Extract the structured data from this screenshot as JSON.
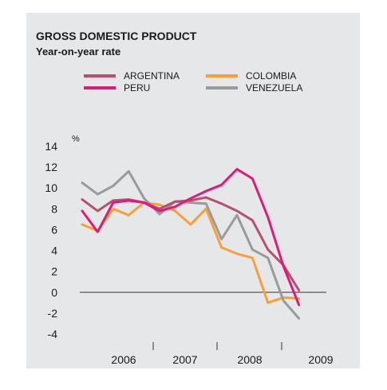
{
  "chart_data": {
    "type": "line",
    "title": "GROSS DOMESTIC PRODUCT",
    "subtitle": "Year-on-year rate",
    "ylabel": "%",
    "xlabel": "",
    "ylim": [
      -4,
      14
    ],
    "yticks": [
      14,
      12,
      10,
      8,
      6,
      4,
      2,
      0,
      -2,
      -4
    ],
    "x_tick_labels": [
      "2006",
      "2007",
      "2008",
      "2009"
    ],
    "grid": false,
    "legend_position": "top",
    "x": [
      "2005Q3",
      "2005Q4",
      "2006Q1",
      "2006Q2",
      "2006Q3",
      "2006Q4",
      "2007Q1",
      "2007Q2",
      "2007Q3",
      "2007Q4",
      "2008Q1",
      "2008Q2",
      "2008Q3",
      "2008Q4",
      "2009Q1",
      "2009Q2"
    ],
    "series": [
      {
        "name": "ARGENTINA",
        "color": "#b5506e",
        "values": [
          8.9,
          7.8,
          8.8,
          8.9,
          8.6,
          8.0,
          8.7,
          8.8,
          9.1,
          8.5,
          7.8,
          6.9,
          4.1,
          2.6,
          0.2,
          null
        ]
      },
      {
        "name": "COLOMBIA",
        "color": "#f7a03a",
        "values": [
          6.5,
          5.9,
          8.0,
          7.4,
          8.6,
          8.4,
          7.8,
          6.5,
          8.0,
          4.3,
          3.7,
          3.3,
          -1.0,
          -0.5,
          -0.6,
          null
        ]
      },
      {
        "name": "PERU",
        "color": "#e0197a",
        "values": [
          7.8,
          5.8,
          8.6,
          8.8,
          8.6,
          7.8,
          8.2,
          9.0,
          9.7,
          10.3,
          11.8,
          10.9,
          7.2,
          2.5,
          -1.2,
          null
        ]
      },
      {
        "name": "VENEZUELA",
        "color": "#9a9a9a",
        "values": [
          10.5,
          9.4,
          10.2,
          11.6,
          9.0,
          7.5,
          8.7,
          8.6,
          8.5,
          5.1,
          7.4,
          4.1,
          3.3,
          -0.8,
          -2.5,
          null
        ]
      }
    ]
  }
}
